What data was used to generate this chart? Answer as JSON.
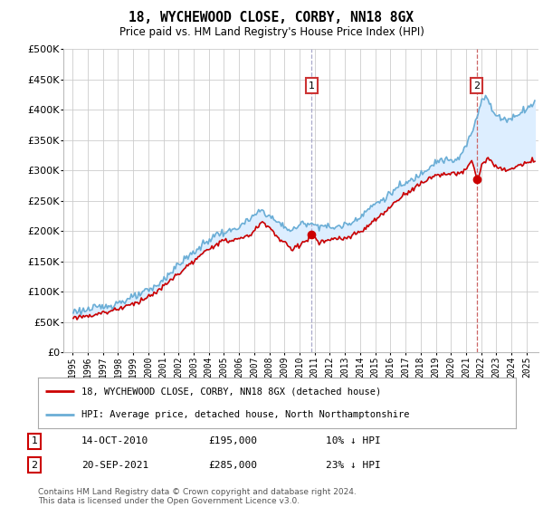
{
  "title": "18, WYCHEWOOD CLOSE, CORBY, NN18 8GX",
  "subtitle": "Price paid vs. HM Land Registry's House Price Index (HPI)",
  "hpi_label": "HPI: Average price, detached house, North Northamptonshire",
  "price_label": "18, WYCHEWOOD CLOSE, CORBY, NN18 8GX (detached house)",
  "sale1_date": "14-OCT-2010",
  "sale1_price": 195000,
  "sale1_note": "10% ↓ HPI",
  "sale2_date": "20-SEP-2021",
  "sale2_price": 285000,
  "sale2_note": "23% ↓ HPI",
  "footnote": "Contains HM Land Registry data © Crown copyright and database right 2024.\nThis data is licensed under the Open Government Licence v3.0.",
  "hpi_color": "#6baed6",
  "price_color": "#cc0000",
  "fill_color": "#ddeeff",
  "sale1_vline_color": "#aaaacc",
  "sale2_vline_color": "#cc6666",
  "ylim": [
    0,
    500000
  ],
  "yticks": [
    0,
    50000,
    100000,
    150000,
    200000,
    250000,
    300000,
    350000,
    400000,
    450000,
    500000
  ],
  "background_color": "#ffffff",
  "grid_color": "#cccccc",
  "sale1_xval": 2010.79,
  "sale2_xval": 2021.71,
  "sale1_yval": 195000,
  "sale2_yval": 285000
}
